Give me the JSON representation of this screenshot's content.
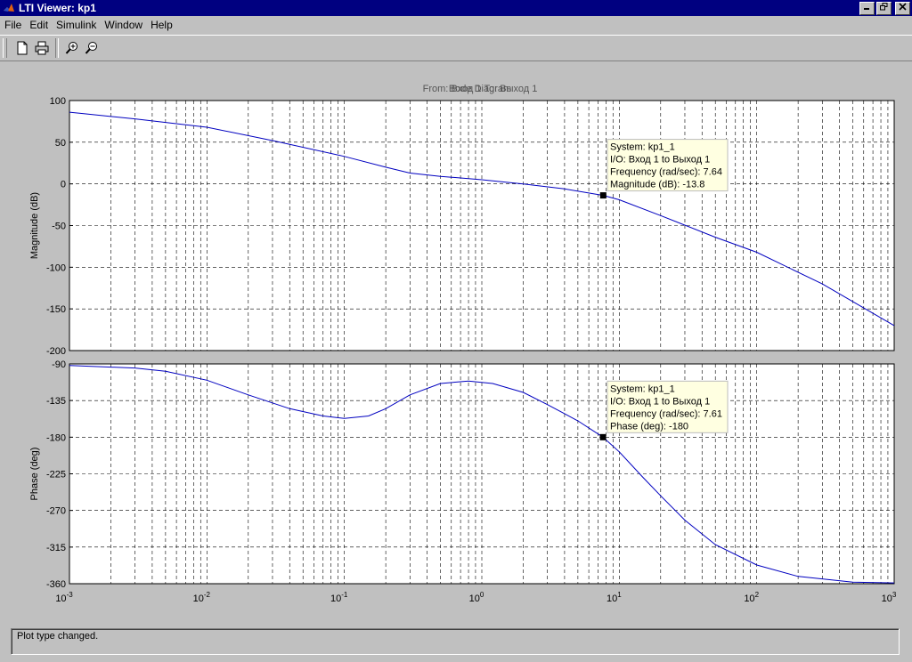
{
  "window": {
    "title": "LTI Viewer: kp1"
  },
  "menu": [
    "File",
    "Edit",
    "Simulink",
    "Window",
    "Help"
  ],
  "toolbar": {
    "icons": [
      "new-file-icon",
      "print-icon",
      "zoom-in-icon",
      "zoom-out-icon"
    ]
  },
  "status_text": "Plot type changed.",
  "chart_data": {
    "type": "line",
    "title_overlap": [
      "From: Вход 1  To: Выход 1",
      "Bode Diagram"
    ],
    "xscale": "log",
    "xlim": [
      0.001,
      1000
    ],
    "x_tick_labels": [
      "10",
      "10",
      "10",
      "10",
      "10",
      "10",
      "10"
    ],
    "x_tick_exponents": [
      "-3",
      "-2",
      "-1",
      "0",
      "1",
      "2",
      "3"
    ],
    "grid": true,
    "line_color": "#0000c0",
    "magnitude": {
      "ylabel": "Magnitude (dB)",
      "ylim": [
        -200,
        100
      ],
      "yticks": [
        100,
        50,
        0,
        -50,
        -100,
        -150,
        -200
      ],
      "x": [
        0.001,
        0.003,
        0.01,
        0.03,
        0.1,
        0.2,
        0.3,
        0.5,
        1,
        2,
        4,
        7.64,
        10,
        20,
        50,
        100,
        300,
        1000
      ],
      "y": [
        86,
        78,
        68,
        52,
        33,
        20,
        13,
        9,
        5,
        0,
        -6,
        -13.8,
        -19,
        -38,
        -64,
        -82,
        -120,
        -170
      ]
    },
    "phase": {
      "ylabel": "Phase (deg)",
      "ylim": [
        -360,
        -90
      ],
      "yticks": [
        -90,
        -135,
        -180,
        -225,
        -270,
        -315,
        -360
      ],
      "x": [
        0.001,
        0.003,
        0.005,
        0.01,
        0.02,
        0.04,
        0.07,
        0.1,
        0.15,
        0.2,
        0.3,
        0.5,
        0.8,
        1.2,
        2,
        3,
        5,
        7.61,
        10,
        15,
        20,
        30,
        50,
        100,
        200,
        500,
        1000
      ],
      "y": [
        -92,
        -95,
        -99,
        -110,
        -128,
        -145,
        -154,
        -157,
        -154,
        -145,
        -128,
        -114,
        -111,
        -114,
        -125,
        -140,
        -160,
        -180,
        -198,
        -230,
        -252,
        -282,
        -312,
        -337,
        -351,
        -358,
        -359
      ]
    },
    "datatips": [
      {
        "panel": "magnitude",
        "x": 7.64,
        "y": -13.8,
        "lines": [
          "System: kp1_1",
          "I/O: Вход 1 to Выход 1",
          "Frequency (rad/sec): 7.64",
          "Magnitude (dB): -13.8"
        ]
      },
      {
        "panel": "phase",
        "x": 7.61,
        "y": -180,
        "lines": [
          "System: kp1_1",
          "I/O: Вход 1 to Выход 1",
          "Frequency (rad/sec): 7.61",
          "Phase (deg): -180"
        ]
      }
    ]
  }
}
